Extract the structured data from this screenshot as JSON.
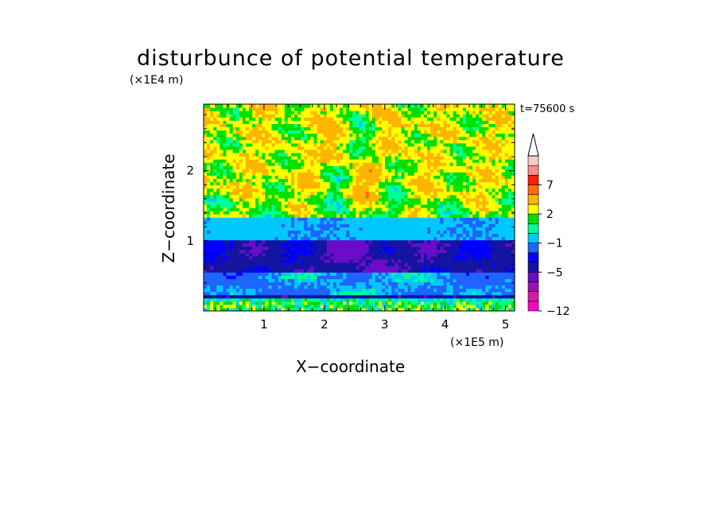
{
  "chart_data": {
    "type": "heatmap",
    "title": "disturbunce of potential temperature",
    "xlabel": "X−coordinate",
    "ylabel": "Z−coordinate",
    "x_unit": "(×1E5 m)",
    "y_unit": "(×1E4 m)",
    "time_label": "t=75600 s",
    "xlim": [
      0,
      5.15
    ],
    "ylim": [
      0,
      2.95
    ],
    "x_ticks": [
      1,
      2,
      3,
      4,
      5
    ],
    "y_ticks": [
      1,
      2
    ],
    "colorbar": {
      "levels": [
        -12,
        -11,
        -9,
        -7,
        -5,
        -4,
        -3,
        -1,
        0,
        1,
        2,
        3,
        5,
        7,
        9,
        11
      ],
      "colors": [
        "#ff00c8",
        "#d81aa8",
        "#9c10b8",
        "#6a0cc8",
        "#1414a0",
        "#0000ff",
        "#1e64ff",
        "#00c8ff",
        "#00ff96",
        "#00e000",
        "#ffff00",
        "#ffb400",
        "#ff6e00",
        "#ff1e00",
        "#ff8c8c",
        "#ffc8c8"
      ],
      "labels": [
        "−12",
        "−5",
        "−1",
        "2",
        "7"
      ],
      "extend": "max"
    },
    "bands": [
      {
        "z_range": [
          0.0,
          0.12
        ],
        "category": "green/yellow noisy layer"
      },
      {
        "z_range": [
          0.18,
          0.22
        ],
        "category": "dark blue thin layer"
      },
      {
        "z_range": [
          0.25,
          0.55
        ],
        "category": "cyan with green patches"
      },
      {
        "z_range": [
          0.55,
          1.0
        ],
        "category": "blue (−5 to −3)"
      },
      {
        "z_range": [
          1.0,
          1.35
        ],
        "category": "cyan (−1 to 0)"
      },
      {
        "z_range": [
          1.35,
          2.95
        ],
        "category": "yellow/green/orange waves"
      }
    ]
  }
}
